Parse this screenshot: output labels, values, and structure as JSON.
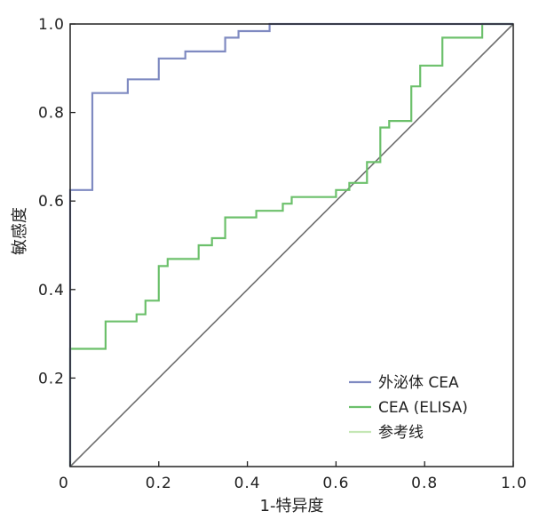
{
  "chart_data": {
    "type": "line",
    "title": "",
    "xlabel": "1-特异度",
    "ylabel": "敏感度",
    "xlim": [
      0,
      1.0
    ],
    "ylim": [
      0,
      1.0
    ],
    "grid": false,
    "legend_position": "bottom-right",
    "x_ticks": [
      {
        "value": 0,
        "label": "0"
      },
      {
        "value": 0.2,
        "label": "0.2"
      },
      {
        "value": 0.4,
        "label": "0.4"
      },
      {
        "value": 0.6,
        "label": "0.6"
      },
      {
        "value": 0.8,
        "label": "0.8"
      },
      {
        "value": 1.0,
        "label": "1.0"
      }
    ],
    "y_ticks": [
      {
        "value": 0.2,
        "label": "0.2"
      },
      {
        "value": 0.4,
        "label": "0.4"
      },
      {
        "value": 0.6,
        "label": "0.6"
      },
      {
        "value": 0.8,
        "label": "0.8"
      },
      {
        "value": 1.0,
        "label": "1.0"
      }
    ],
    "series": [
      {
        "name": "外泌体 CEA",
        "color": "#7f8ac1",
        "x": [
          0,
          0,
          0.05,
          0.05,
          0.13,
          0.13,
          0.2,
          0.2,
          0.26,
          0.26,
          0.3,
          0.3,
          0.35,
          0.35,
          0.38,
          0.38,
          0.45,
          0.45,
          1.0
        ],
        "y": [
          0,
          0.625,
          0.625,
          0.844,
          0.844,
          0.875,
          0.875,
          0.922,
          0.922,
          0.938,
          0.938,
          0.938,
          0.938,
          0.969,
          0.969,
          0.984,
          0.984,
          1.0,
          1.0
        ]
      },
      {
        "name": "CEA (ELISA)",
        "color": "#6cc06b",
        "x": [
          0,
          0,
          0.08,
          0.08,
          0.15,
          0.15,
          0.17,
          0.17,
          0.2,
          0.2,
          0.22,
          0.22,
          0.29,
          0.29,
          0.32,
          0.32,
          0.35,
          0.35,
          0.42,
          0.42,
          0.48,
          0.48,
          0.5,
          0.5,
          0.6,
          0.6,
          0.63,
          0.63,
          0.67,
          0.67,
          0.7,
          0.7,
          0.72,
          0.72,
          0.77,
          0.77,
          0.79,
          0.79,
          0.84,
          0.84,
          0.93,
          0.93,
          1.0
        ],
        "y": [
          0,
          0.266,
          0.266,
          0.328,
          0.328,
          0.344,
          0.344,
          0.375,
          0.375,
          0.453,
          0.453,
          0.469,
          0.469,
          0.5,
          0.5,
          0.516,
          0.516,
          0.563,
          0.563,
          0.578,
          0.578,
          0.594,
          0.594,
          0.609,
          0.609,
          0.625,
          0.625,
          0.641,
          0.641,
          0.688,
          0.688,
          0.766,
          0.766,
          0.781,
          0.781,
          0.859,
          0.859,
          0.906,
          0.906,
          0.969,
          0.969,
          1.0,
          1.0
        ]
      },
      {
        "name": "参考线",
        "color": "#6e6e6e",
        "legend_color": "#c4e7b4",
        "x": [
          0,
          1.0
        ],
        "y": [
          0,
          1.0
        ]
      }
    ]
  }
}
